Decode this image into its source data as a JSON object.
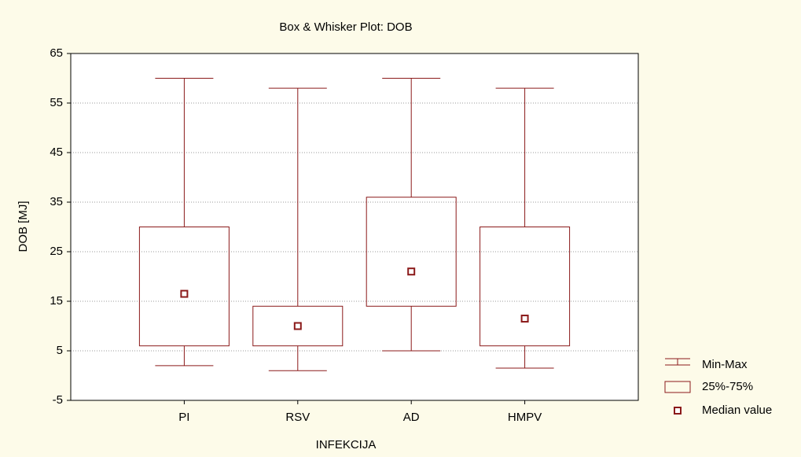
{
  "chart_data": {
    "type": "box",
    "title": "Box & Whisker Plot: DOB",
    "x_label": "INFEKCIJA",
    "y_label": "DOB [MJ]",
    "categories": [
      "PI",
      "RSV",
      "AD",
      "HMPV"
    ],
    "min": [
      2,
      1,
      5,
      1.5
    ],
    "q1": [
      6,
      6,
      14,
      6
    ],
    "median": [
      16.5,
      10,
      21,
      11.5
    ],
    "q3": [
      30,
      14,
      36,
      30
    ],
    "max": [
      60,
      58,
      60,
      58
    ],
    "color": "#8b1a1a",
    "legend": [
      "Min-Max",
      "25%-75%",
      "Median value"
    ],
    "ylim": [
      -5,
      65
    ],
    "yticks": [
      -5,
      5,
      15,
      25,
      35,
      45,
      55,
      65
    ],
    "grid": true
  }
}
